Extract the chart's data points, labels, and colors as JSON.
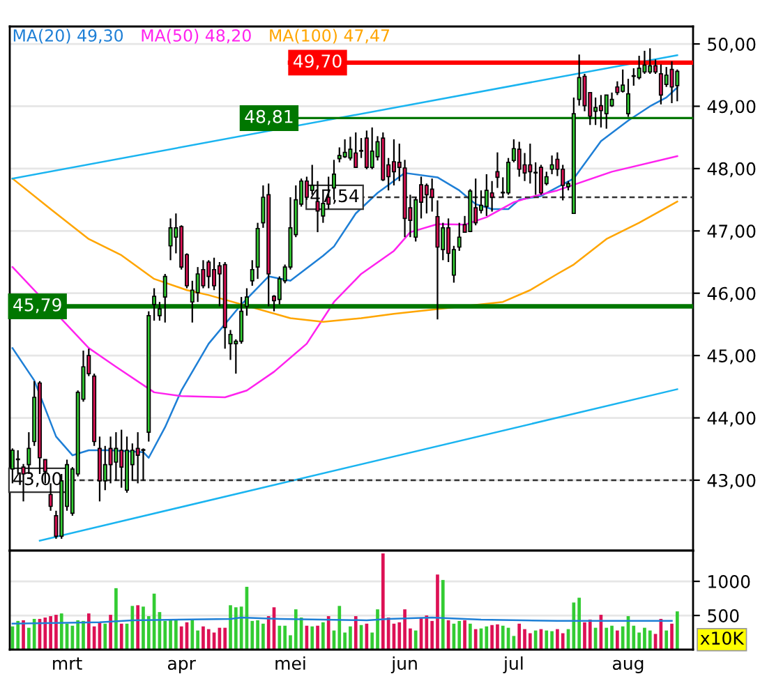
{
  "chart_data": [
    {
      "type": "candlestick",
      "categories": [
        null,
        null,
        null,
        null,
        null,
        null,
        null,
        null,
        null,
        null,
        null,
        null,
        null,
        null,
        null,
        null,
        null,
        null,
        null,
        null,
        null,
        null,
        null,
        null,
        null,
        null,
        null,
        null,
        null,
        null,
        null,
        null,
        null,
        null,
        null,
        null,
        null,
        null,
        null,
        null,
        null,
        null,
        null,
        null,
        null,
        null,
        null,
        null,
        null,
        null,
        null,
        null,
        null,
        null,
        null,
        null,
        null,
        null,
        null,
        null,
        null,
        null,
        null,
        null,
        null,
        null,
        null,
        null,
        null,
        null,
        null,
        null,
        null,
        null,
        null,
        null,
        null,
        null,
        null,
        null,
        null,
        null,
        null,
        null,
        null,
        null,
        null,
        null,
        null,
        null,
        null,
        null,
        null,
        null,
        null,
        null,
        null,
        null,
        null,
        null,
        null,
        null,
        null,
        null,
        null,
        null,
        null,
        null,
        null,
        null,
        null,
        null,
        null,
        null,
        null,
        null,
        null,
        null,
        null,
        null,
        null,
        null,
        null
      ],
      "ohlc": [
        [
          43.18,
          43.51,
          42.95,
          43.48
        ],
        [
          43.33,
          43.48,
          43.1,
          43.34
        ],
        [
          43.21,
          43.26,
          42.66,
          43.1
        ],
        [
          43.25,
          43.77,
          43.1,
          43.51
        ],
        [
          43.62,
          44.59,
          43.55,
          44.33
        ],
        [
          44.56,
          44.59,
          43.1,
          43.36
        ],
        [
          43.33,
          43.33,
          42.95,
          43.14
        ],
        [
          42.77,
          42.95,
          42.51,
          42.58
        ],
        [
          42.43,
          42.51,
          42.06,
          42.1
        ],
        [
          42.1,
          43.1,
          42.06,
          42.99
        ],
        [
          42.58,
          43.33,
          42.51,
          43.25
        ],
        [
          42.47,
          43.21,
          42.43,
          43.18
        ],
        [
          43.1,
          44.44,
          43.06,
          44.41
        ],
        [
          44.3,
          45.08,
          44.26,
          44.82
        ],
        [
          45.0,
          45.11,
          44.67,
          44.71
        ],
        [
          44.67,
          44.71,
          43.55,
          43.62
        ],
        [
          43.51,
          43.7,
          42.66,
          42.99
        ],
        [
          42.99,
          43.55,
          42.84,
          43.25
        ],
        [
          43.51,
          43.7,
          42.95,
          43.25
        ],
        [
          43.29,
          43.77,
          42.99,
          43.51
        ],
        [
          43.48,
          43.81,
          42.88,
          43.21
        ],
        [
          42.84,
          43.7,
          42.8,
          43.48
        ],
        [
          43.25,
          43.59,
          42.99,
          43.48
        ],
        [
          43.51,
          43.77,
          42.95,
          43.4
        ],
        [
          43.48,
          43.51,
          42.99,
          43.49
        ],
        [
          43.77,
          45.71,
          43.62,
          45.64
        ],
        [
          45.82,
          46.08,
          45.56,
          45.95
        ],
        [
          45.64,
          45.86,
          45.56,
          45.75
        ],
        [
          45.94,
          46.31,
          45.53,
          46.27
        ],
        [
          46.76,
          47.2,
          46.53,
          47.05
        ],
        [
          46.9,
          47.28,
          46.64,
          47.05
        ],
        [
          47.07,
          47.09,
          46.38,
          46.42
        ],
        [
          46.62,
          46.64,
          46.08,
          46.12
        ],
        [
          45.86,
          46.2,
          45.53,
          46.05
        ],
        [
          46.01,
          46.42,
          45.86,
          46.31
        ],
        [
          46.38,
          46.53,
          46.08,
          46.12
        ],
        [
          46.5,
          46.53,
          46.08,
          46.27
        ],
        [
          46.38,
          46.57,
          46.05,
          46.12
        ],
        [
          46.44,
          46.5,
          45.79,
          46.31
        ],
        [
          46.46,
          46.5,
          45.11,
          45.45
        ],
        [
          45.19,
          45.41,
          44.93,
          45.34
        ],
        [
          45.19,
          45.26,
          44.71,
          45.23
        ],
        [
          45.23,
          45.94,
          45.19,
          45.71
        ],
        [
          45.79,
          46.08,
          45.64,
          45.94
        ],
        [
          46.2,
          46.53,
          46.12,
          46.38
        ],
        [
          46.42,
          47.13,
          46.23,
          47.04
        ],
        [
          47.13,
          47.73,
          47.05,
          47.54
        ],
        [
          47.58,
          47.76,
          45.79,
          46.31
        ],
        [
          45.95,
          45.97,
          45.71,
          45.88
        ],
        [
          45.9,
          46.27,
          45.82,
          46.23
        ],
        [
          46.2,
          46.46,
          46.16,
          46.42
        ],
        [
          46.42,
          47.54,
          46.38,
          47.05
        ],
        [
          46.94,
          47.73,
          46.9,
          47.5
        ],
        [
          47.43,
          47.84,
          47.39,
          47.8
        ],
        [
          47.8,
          47.87,
          47.5,
          47.54
        ],
        [
          47.65,
          48.06,
          47.58,
          47.73
        ],
        [
          47.47,
          47.8,
          46.98,
          47.32
        ],
        [
          47.24,
          47.65,
          47.13,
          47.44
        ],
        [
          47.54,
          47.87,
          47.35,
          47.43
        ],
        [
          47.69,
          48.14,
          47.5,
          47.91
        ],
        [
          48.16,
          48.34,
          48.1,
          48.21
        ],
        [
          48.19,
          48.47,
          48.17,
          48.26
        ],
        [
          48.17,
          48.51,
          48.13,
          48.31
        ],
        [
          48.25,
          48.58,
          48.02,
          48.02
        ],
        [
          48.28,
          48.49,
          48.17,
          48.29
        ],
        [
          48.49,
          48.61,
          47.99,
          48.02
        ],
        [
          48.02,
          48.66,
          47.99,
          48.28
        ],
        [
          48.19,
          48.52,
          48.13,
          48.43
        ],
        [
          48.49,
          48.58,
          47.8,
          47.82
        ],
        [
          48.06,
          48.17,
          47.65,
          47.87
        ],
        [
          48.11,
          48.47,
          47.73,
          47.95
        ],
        [
          48.1,
          48.4,
          47.8,
          48.02
        ],
        [
          48.01,
          48.14,
          46.9,
          47.2
        ],
        [
          47.37,
          47.58,
          46.9,
          47.17
        ],
        [
          46.9,
          47.54,
          46.83,
          47.5
        ],
        [
          47.74,
          47.87,
          47.2,
          47.46
        ],
        [
          47.73,
          47.76,
          47.28,
          47.58
        ],
        [
          47.67,
          47.84,
          47.31,
          47.54
        ],
        [
          47.23,
          47.49,
          45.58,
          46.74
        ],
        [
          46.7,
          47.13,
          46.53,
          47.05
        ],
        [
          47.05,
          47.2,
          46.5,
          46.64
        ],
        [
          46.29,
          46.76,
          46.17,
          46.7
        ],
        [
          46.74,
          47.13,
          46.68,
          46.9
        ],
        [
          47.1,
          47.24,
          46.98,
          46.98
        ],
        [
          46.99,
          47.67,
          46.98,
          47.64
        ],
        [
          47.37,
          47.84,
          47.09,
          47.13
        ],
        [
          47.33,
          47.65,
          47.28,
          47.41
        ],
        [
          47.39,
          47.91,
          47.24,
          47.65
        ],
        [
          47.61,
          47.8,
          47.31,
          47.54
        ],
        [
          47.95,
          48.26,
          47.69,
          47.86
        ],
        [
          47.61,
          47.86,
          47.54,
          47.62
        ],
        [
          47.61,
          48.17,
          47.58,
          48.1
        ],
        [
          48.13,
          48.47,
          48.1,
          48.32
        ],
        [
          48.31,
          48.43,
          47.87,
          47.99
        ],
        [
          48.06,
          48.25,
          47.8,
          47.93
        ],
        [
          48.06,
          48.4,
          47.76,
          47.95
        ],
        [
          47.93,
          48.1,
          47.58,
          47.94
        ],
        [
          48.02,
          48.06,
          47.58,
          47.61
        ],
        [
          47.76,
          47.95,
          47.73,
          47.87
        ],
        [
          47.99,
          48.21,
          47.91,
          48.06
        ],
        [
          48.15,
          48.26,
          47.88,
          47.99
        ],
        [
          47.99,
          48.06,
          47.49,
          47.73
        ],
        [
          47.71,
          47.8,
          47.65,
          47.76
        ],
        [
          47.28,
          49.14,
          47.28,
          48.88
        ],
        [
          49.11,
          49.83,
          49.01,
          49.46
        ],
        [
          49.48,
          49.52,
          48.92,
          49.01
        ],
        [
          49.22,
          49.22,
          48.7,
          48.84
        ],
        [
          48.92,
          49.14,
          48.7,
          48.98
        ],
        [
          49.01,
          49.18,
          48.66,
          48.93
        ],
        [
          48.88,
          49.18,
          48.64,
          49.18
        ],
        [
          49.01,
          49.22,
          48.99,
          49.11
        ],
        [
          49.31,
          49.4,
          49.18,
          49.22
        ],
        [
          49.24,
          49.59,
          49.22,
          49.34
        ],
        [
          48.88,
          49.44,
          48.83,
          49.2
        ],
        [
          49.48,
          49.61,
          49.33,
          49.49
        ],
        [
          49.46,
          49.81,
          49.43,
          49.61
        ],
        [
          49.55,
          49.89,
          49.52,
          49.66
        ],
        [
          49.55,
          49.93,
          49.52,
          49.65
        ],
        [
          49.65,
          49.75,
          49.52,
          49.55
        ],
        [
          49.52,
          49.67,
          49.03,
          49.18
        ],
        [
          49.35,
          49.63,
          49.31,
          49.5
        ],
        [
          49.59,
          49.72,
          49.05,
          49.31
        ],
        [
          49.33,
          49.59,
          49.08,
          49.56
        ]
      ],
      "colors": [
        "#33cc33",
        "#33cc33",
        "#dd1155",
        "#33cc33",
        "#33cc33",
        "#dd1155",
        "#dd1155",
        "#dd1155",
        "#dd1155",
        "#33cc33",
        "#33cc33",
        "#33cc33",
        "#33cc33",
        "#33cc33",
        "#dd1155",
        "#dd1155",
        "#dd1155",
        "#33cc33",
        "#dd1155",
        "#33cc33",
        "#dd1155",
        "#33cc33",
        "#33cc33",
        "#dd1155",
        "#33cc33",
        "#33cc33",
        "#33cc33",
        "#33cc33",
        "#33cc33",
        "#33cc33",
        "#33cc33",
        "#dd1155",
        "#dd1155",
        "#33cc33",
        "#33cc33",
        "#dd1155",
        "#dd1155",
        "#dd1155",
        "#dd1155",
        "#dd1155",
        "#33cc33",
        "#33cc33",
        "#33cc33",
        "#33cc33",
        "#33cc33",
        "#33cc33",
        "#33cc33",
        "#dd1155",
        "#dd1155",
        "#33cc33",
        "#33cc33",
        "#33cc33",
        "#33cc33",
        "#33cc33",
        "#dd1155",
        "#33cc33",
        "#dd1155",
        "#33cc33",
        "#dd1155",
        "#33cc33",
        "#33cc33",
        "#33cc33",
        "#33cc33",
        "#dd1155",
        "#33cc33",
        "#dd1155",
        "#33cc33",
        "#33cc33",
        "#dd1155",
        "#dd1155",
        "#dd1155",
        "#dd1155",
        "#dd1155",
        "#dd1155",
        "#33cc33",
        "#dd1155",
        "#dd1155",
        "#dd1155",
        "#dd1155",
        "#33cc33",
        "#dd1155",
        "#33cc33",
        "#33cc33",
        "#dd1155",
        "#33cc33",
        "#dd1155",
        "#33cc33",
        "#33cc33",
        "#dd1155",
        "#dd1155",
        "#33cc33",
        "#33cc33",
        "#33cc33",
        "#dd1155",
        "#dd1155",
        "#dd1155",
        "#33cc33",
        "#dd1155",
        "#33cc33",
        "#33cc33",
        "#dd1155",
        "#dd1155",
        "#33cc33",
        "#33cc33",
        "#33cc33",
        "#dd1155",
        "#dd1155",
        "#33cc33",
        "#dd1155",
        "#33cc33",
        "#33cc33",
        "#dd1155",
        "#33cc33",
        "#33cc33",
        "#33cc33",
        "#33cc33",
        "#33cc33",
        "#33cc33",
        "#dd1155",
        "#dd1155",
        "#33cc33",
        "#dd1155",
        "#33cc33"
      ],
      "series": [
        {
          "name": "MA(20) 49,30",
          "type": "line",
          "color": "#1e7fd6",
          "values": [
            45.12,
            null,
            null,
            null,
            44.6,
            null,
            null,
            null,
            43.7,
            null,
            null,
            43.4,
            null,
            null,
            43.48,
            null,
            null,
            null,
            43.48,
            null,
            null,
            null,
            null,
            null,
            43.45,
            43.36,
            null,
            null,
            43.85,
            null,
            null,
            44.44,
            null,
            null,
            null,
            null,
            45.19,
            null,
            null,
            null,
            null,
            null,
            45.82,
            null,
            null,
            null,
            null,
            46.27,
            null,
            null,
            null,
            46.2,
            null,
            null,
            null,
            null,
            null,
            46.6,
            null,
            46.75,
            null,
            null,
            null,
            47.28,
            null,
            null,
            null,
            47.61,
            null,
            null,
            null,
            null,
            47.93,
            null,
            null,
            null,
            null,
            null,
            47.86,
            null,
            null,
            null,
            47.65,
            null,
            null,
            47.43,
            null,
            null,
            47.35,
            null,
            null,
            47.35,
            null,
            47.5,
            null,
            null,
            null,
            47.56,
            null,
            null,
            null,
            null,
            null,
            47.84,
            null,
            null,
            null,
            null,
            48.44,
            null,
            null,
            null,
            null,
            48.77,
            null,
            null,
            null,
            49.0,
            null,
            null,
            49.14,
            null,
            49.3
          ]
        },
        {
          "name": "MA(50) 48,20",
          "type": "line",
          "color": "#ff22ee",
          "values": [
            46.42,
            null,
            null,
            null,
            null,
            null,
            null,
            null,
            null,
            null,
            null,
            null,
            null,
            null,
            45.12,
            null,
            null,
            null,
            null,
            44.82,
            null,
            null,
            null,
            null,
            null,
            null,
            44.41,
            null,
            null,
            null,
            null,
            44.35,
            null,
            null,
            null,
            null,
            null,
            null,
            null,
            44.33,
            null,
            null,
            null,
            44.44,
            null,
            null,
            null,
            null,
            44.74,
            null,
            null,
            null,
            null,
            null,
            45.19,
            null,
            null,
            null,
            null,
            45.86,
            null,
            null,
            null,
            null,
            46.31,
            null,
            null,
            null,
            null,
            null,
            46.68,
            null,
            null,
            46.98,
            null,
            null,
            null,
            null,
            47.11,
            null,
            null,
            null,
            null,
            47.1,
            null,
            null,
            null,
            47.22,
            null,
            null,
            null,
            null,
            47.46,
            null,
            null,
            47.54,
            null,
            null,
            null,
            null,
            47.65,
            null,
            null,
            47.74,
            null,
            null,
            null,
            null,
            null,
            null,
            47.95,
            null,
            null,
            null,
            null,
            null,
            null,
            null,
            null,
            null,
            null,
            null,
            48.2
          ]
        },
        {
          "name": "MA(100) 47,47",
          "type": "line",
          "color": "#ffa500",
          "values": [
            47.84,
            null,
            null,
            null,
            null,
            null,
            null,
            47.35,
            null,
            null,
            null,
            null,
            null,
            null,
            46.87,
            null,
            null,
            null,
            null,
            null,
            46.61,
            null,
            null,
            null,
            null,
            null,
            46.23,
            null,
            null,
            null,
            null,
            null,
            46.05,
            null,
            null,
            null,
            45.97,
            null,
            null,
            null,
            null,
            null,
            null,
            null,
            null,
            null,
            null,
            null,
            null,
            null,
            null,
            45.6,
            null,
            null,
            null,
            null,
            null,
            45.54,
            null,
            null,
            null,
            null,
            null,
            null,
            45.6,
            null,
            null,
            null,
            null,
            null,
            45.67,
            null,
            null,
            null,
            null,
            null,
            null,
            null,
            null,
            null,
            null,
            null,
            null,
            null,
            null,
            null,
            null,
            null,
            null,
            null,
            45.86,
            null,
            null,
            null,
            null,
            46.05,
            null,
            null,
            null,
            null,
            46.31,
            null,
            null,
            46.46,
            null,
            null,
            null,
            null,
            null,
            46.87,
            null,
            null,
            null,
            null,
            null,
            47.13,
            null,
            null,
            null,
            null,
            null,
            null,
            47.47
          ]
        },
        {
          "type": "line",
          "color": "#1ab4f0",
          "values": [
            47.84,
            null,
            null,
            null,
            null,
            null,
            null,
            null,
            null,
            null,
            null,
            null,
            null,
            null,
            null,
            null,
            null,
            null,
            null,
            null,
            null,
            null,
            null,
            null,
            null,
            null,
            null,
            null,
            null,
            null,
            null,
            null,
            null,
            null,
            null,
            null,
            null,
            null,
            null,
            null,
            null,
            null,
            null,
            null,
            null,
            null,
            null,
            null,
            null,
            null,
            null,
            null,
            null,
            null,
            null,
            null,
            null,
            null,
            null,
            null,
            null,
            null,
            null,
            null,
            null,
            null,
            null,
            null,
            null,
            null,
            null,
            null,
            null,
            null,
            null,
            null,
            null,
            null,
            null,
            null,
            null,
            null,
            null,
            null,
            null,
            null,
            null,
            null,
            null,
            null,
            null,
            null,
            null,
            null,
            null,
            null,
            null,
            null,
            null,
            null,
            null,
            null,
            null,
            null,
            null,
            null,
            null,
            null,
            null,
            null,
            null,
            null,
            null,
            null,
            null,
            null,
            null,
            null,
            null,
            null,
            null,
            null,
            49.82
          ]
        },
        {
          "type": "line",
          "color": "#1ab4f0",
          "values": [
            null,
            null,
            null,
            null,
            null,
            42.03,
            null,
            null,
            null,
            null,
            null,
            null,
            null,
            null,
            null,
            null,
            null,
            null,
            null,
            null,
            null,
            null,
            null,
            null,
            null,
            null,
            null,
            null,
            null,
            null,
            null,
            null,
            null,
            null,
            null,
            null,
            null,
            null,
            null,
            null,
            null,
            null,
            null,
            null,
            null,
            null,
            null,
            null,
            null,
            null,
            null,
            null,
            null,
            null,
            null,
            null,
            null,
            null,
            null,
            null,
            null,
            null,
            null,
            null,
            null,
            null,
            null,
            null,
            null,
            null,
            null,
            null,
            null,
            null,
            null,
            null,
            null,
            null,
            null,
            null,
            null,
            null,
            null,
            null,
            null,
            null,
            null,
            null,
            null,
            null,
            null,
            null,
            null,
            null,
            null,
            null,
            null,
            null,
            null,
            null,
            null,
            null,
            null,
            null,
            null,
            null,
            null,
            null,
            null,
            null,
            null,
            null,
            null,
            null,
            null,
            null,
            null,
            null,
            null,
            null,
            null,
            null,
            44.46
          ]
        }
      ],
      "ref_lines": [
        {
          "axis": "y",
          "value": 49.7,
          "label": "49,70",
          "color": "#ff0000",
          "line_style": "solid"
        },
        {
          "axis": "y",
          "value": 48.81,
          "label": "48,81",
          "color": "#007700",
          "line_style": "solid"
        },
        {
          "axis": "y",
          "value": 47.54,
          "label": "47,54",
          "color": "#333333",
          "line_style": "dashed"
        },
        {
          "axis": "y",
          "value": 45.79,
          "label": "45,79",
          "color": "#007700",
          "line_style": "solid"
        },
        {
          "axis": "y",
          "value": 43.0,
          "label": "43,00",
          "color": "#333333",
          "line_style": "dashed"
        }
      ],
      "ylim": [
        41.87,
        50.28
      ],
      "yticks": [
        {
          "value": 43,
          "label": "43,00"
        },
        {
          "value": 44,
          "label": "44,00"
        },
        {
          "value": 45,
          "label": "45,00"
        },
        {
          "value": 46,
          "label": "46,00"
        },
        {
          "value": 47,
          "label": "47,00"
        },
        {
          "value": 48,
          "label": "48,00"
        },
        {
          "value": 49,
          "label": "49,00"
        },
        {
          "value": 50,
          "label": "50,00"
        }
      ],
      "tick_labels": "y",
      "grid": "y",
      "legend": "top left"
    },
    {
      "type": "bar",
      "categories": [
        null,
        null,
        null,
        null,
        null,
        null,
        null,
        null,
        null,
        null,
        "mrt",
        null,
        null,
        null,
        null,
        null,
        null,
        null,
        null,
        null,
        null,
        null,
        null,
        null,
        null,
        null,
        null,
        null,
        null,
        null,
        null,
        "apr",
        null,
        null,
        null,
        null,
        null,
        null,
        null,
        null,
        null,
        null,
        null,
        null,
        null,
        null,
        null,
        null,
        null,
        null,
        null,
        "mei",
        null,
        null,
        null,
        null,
        null,
        null,
        null,
        null,
        null,
        null,
        null,
        null,
        null,
        null,
        null,
        null,
        null,
        null,
        null,
        null,
        "jun",
        null,
        null,
        null,
        null,
        null,
        null,
        null,
        null,
        null,
        null,
        null,
        null,
        null,
        null,
        null,
        null,
        null,
        null,
        null,
        "jul",
        null,
        null,
        null,
        null,
        null,
        null,
        null,
        null,
        null,
        null,
        null,
        null,
        null,
        null,
        null,
        null,
        null,
        null,
        null,
        null,
        "aug",
        null,
        null,
        null,
        null,
        null,
        null,
        null,
        null,
        null
      ],
      "series": [
        {
          "type": "bar",
          "values": [
            340,
            420,
            430,
            320,
            450,
            450,
            470,
            490,
            510,
            530,
            380,
            350,
            430,
            420,
            530,
            340,
            400,
            380,
            510,
            900,
            380,
            380,
            640,
            650,
            630,
            490,
            820,
            550,
            420,
            440,
            440,
            340,
            400,
            440,
            280,
            340,
            300,
            250,
            320,
            320,
            650,
            620,
            630,
            920,
            420,
            430,
            380,
            490,
            620,
            350,
            350,
            210,
            590,
            470,
            350,
            340,
            350,
            400,
            490,
            280,
            640,
            250,
            340,
            490,
            360,
            380,
            250,
            590,
            1410,
            470,
            380,
            400,
            590,
            310,
            280,
            470,
            500,
            420,
            1100,
            1020,
            430,
            380,
            420,
            430,
            380,
            300,
            310,
            340,
            360,
            370,
            350,
            320,
            200,
            380,
            300,
            240,
            280,
            300,
            280,
            270,
            300,
            240,
            300,
            690,
            760,
            400,
            440,
            320,
            510,
            320,
            350,
            280,
            340,
            490,
            350,
            250,
            320,
            280,
            230,
            450,
            280,
            380,
            560
          ],
          "colors": [
            "#33cc33",
            "#33cc33",
            "#dd1155",
            "#33cc33",
            "#33cc33",
            "#dd1155",
            "#dd1155",
            "#dd1155",
            "#dd1155",
            "#33cc33",
            "#33cc33",
            "#33cc33",
            "#33cc33",
            "#33cc33",
            "#dd1155",
            "#dd1155",
            "#dd1155",
            "#33cc33",
            "#dd1155",
            "#33cc33",
            "#dd1155",
            "#33cc33",
            "#33cc33",
            "#dd1155",
            "#33cc33",
            "#33cc33",
            "#33cc33",
            "#33cc33",
            "#33cc33",
            "#33cc33",
            "#33cc33",
            "#dd1155",
            "#dd1155",
            "#33cc33",
            "#33cc33",
            "#dd1155",
            "#dd1155",
            "#dd1155",
            "#dd1155",
            "#dd1155",
            "#33cc33",
            "#33cc33",
            "#33cc33",
            "#33cc33",
            "#33cc33",
            "#33cc33",
            "#33cc33",
            "#dd1155",
            "#dd1155",
            "#33cc33",
            "#33cc33",
            "#33cc33",
            "#33cc33",
            "#33cc33",
            "#dd1155",
            "#33cc33",
            "#dd1155",
            "#33cc33",
            "#dd1155",
            "#33cc33",
            "#33cc33",
            "#33cc33",
            "#33cc33",
            "#dd1155",
            "#33cc33",
            "#dd1155",
            "#33cc33",
            "#33cc33",
            "#dd1155",
            "#dd1155",
            "#dd1155",
            "#dd1155",
            "#dd1155",
            "#dd1155",
            "#33cc33",
            "#dd1155",
            "#dd1155",
            "#dd1155",
            "#dd1155",
            "#33cc33",
            "#dd1155",
            "#33cc33",
            "#33cc33",
            "#dd1155",
            "#33cc33",
            "#dd1155",
            "#33cc33",
            "#33cc33",
            "#dd1155",
            "#dd1155",
            "#33cc33",
            "#33cc33",
            "#33cc33",
            "#dd1155",
            "#dd1155",
            "#dd1155",
            "#33cc33",
            "#dd1155",
            "#33cc33",
            "#33cc33",
            "#dd1155",
            "#dd1155",
            "#33cc33",
            "#33cc33",
            "#33cc33",
            "#dd1155",
            "#dd1155",
            "#33cc33",
            "#dd1155",
            "#33cc33",
            "#33cc33",
            "#dd1155",
            "#33cc33",
            "#33cc33",
            "#33cc33",
            "#33cc33",
            "#33cc33",
            "#33cc33",
            "#dd1155",
            "#dd1155",
            "#33cc33",
            "#dd1155",
            "#33cc33"
          ]
        },
        {
          "type": "line",
          "color": "#1e7fd6",
          "values": [
            380,
            null,
            null,
            null,
            null,
            null,
            null,
            null,
            null,
            null,
            null,
            null,
            null,
            null,
            null,
            null,
            400,
            null,
            null,
            null,
            null,
            null,
            430,
            null,
            null,
            null,
            null,
            null,
            null,
            null,
            null,
            null,
            null,
            null,
            null,
            null,
            null,
            null,
            null,
            null,
            450,
            null,
            470,
            null,
            null,
            null,
            null,
            null,
            null,
            450,
            null,
            null,
            null,
            null,
            null,
            null,
            null,
            null,
            null,
            null,
            null,
            null,
            null,
            null,
            null,
            430,
            null,
            null,
            null,
            450,
            null,
            null,
            null,
            null,
            null,
            null,
            null,
            470,
            null,
            null,
            null,
            null,
            null,
            null,
            null,
            null,
            440,
            null,
            null,
            null,
            null,
            null,
            null,
            null,
            null,
            null,
            null,
            null,
            null,
            null,
            420,
            null,
            null,
            null,
            null,
            null,
            null,
            null,
            null,
            null,
            null,
            null,
            null,
            null,
            null,
            null,
            null,
            null,
            null,
            null,
            null,
            420,
            null
          ]
        }
      ],
      "ylim": [
        0,
        1450
      ],
      "yticks": [
        500,
        1000
      ],
      "grid": "y",
      "annotations": [
        "x10K"
      ]
    }
  ]
}
